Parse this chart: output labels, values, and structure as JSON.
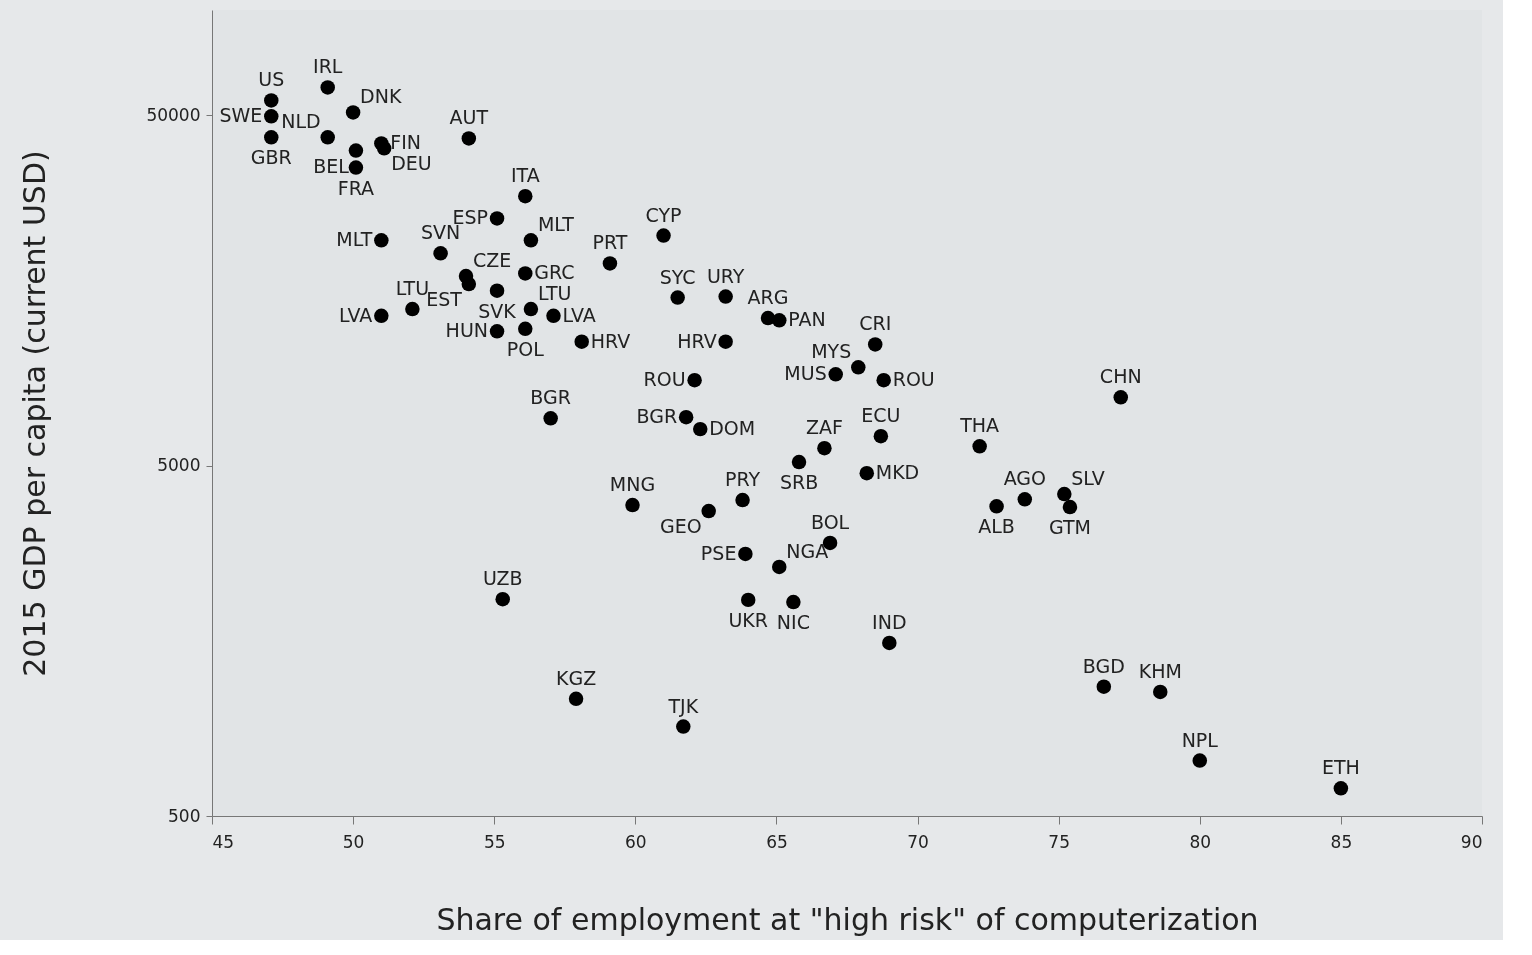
{
  "chart_data": {
    "type": "scatter",
    "xlabel": "Share of employment at \"high risk\" of computerization",
    "ylabel": "2015 GDP per capita (current USD)",
    "x": [
      47.1,
      47.1,
      47.1,
      49.1,
      50.0,
      49.1,
      50.1,
      50.1,
      51.0,
      51.1,
      54.1,
      56.1,
      55.1,
      56.3,
      51.0,
      53.1,
      54.0,
      54.1,
      55.1,
      56.1,
      56.3,
      57.1,
      55.1,
      56.1,
      58.1,
      52.1,
      51.0,
      59.1,
      61.0,
      61.5,
      63.2,
      64.7,
      65.1,
      63.2,
      68.5,
      67.9,
      67.1,
      68.8,
      62.1,
      61.8,
      62.3,
      66.7,
      65.8,
      68.7,
      68.2,
      72.2,
      57.0,
      59.9,
      62.6,
      63.8,
      63.9,
      65.1,
      66.9,
      55.3,
      64.0,
      65.6,
      69.0,
      57.9,
      61.7,
      77.2,
      73.8,
      72.8,
      75.2,
      75.4,
      76.6,
      78.6,
      80.0,
      85.0
    ],
    "values": [
      55200,
      49700,
      43300,
      60100,
      51000,
      43300,
      39700,
      35500,
      41600,
      40300,
      43000,
      29400,
      25400,
      22000,
      22000,
      20200,
      17400,
      16500,
      15800,
      17700,
      14000,
      13400,
      12100,
      12300,
      11300,
      14000,
      13400,
      18900,
      22700,
      15100,
      15200,
      13200,
      13000,
      11300,
      11100,
      9550,
      9120,
      8770,
      8770,
      6880,
      6360,
      5610,
      5120,
      6070,
      4760,
      5680,
      6830,
      3860,
      3710,
      3990,
      2800,
      2570,
      3010,
      2080,
      2070,
      2040,
      1560,
      1080,
      900,
      7840,
      4010,
      3830,
      4150,
      3810,
      1170,
      1130,
      720,
      600
    ],
    "color": "#000000",
    "marker": "circle",
    "xlim": [
      45,
      90
    ],
    "xticks": [
      45,
      50,
      55,
      60,
      65,
      70,
      75,
      80,
      85,
      90
    ],
    "ylim": [
      500,
      100000
    ],
    "yticks": [
      500,
      5000,
      50000
    ],
    "log": "y",
    "grid": false,
    "annotations": [
      {
        "text": "US",
        "x": 47.1,
        "y": 55200
      },
      {
        "text": "SWE",
        "x": 47.1,
        "y": 49700
      },
      {
        "text": "GBR",
        "x": 47.1,
        "y": 43300
      },
      {
        "text": "IRL",
        "x": 49.1,
        "y": 60100
      },
      {
        "text": "DNK",
        "x": 50.0,
        "y": 51000
      },
      {
        "text": "NLD",
        "x": 49.1,
        "y": 43300
      },
      {
        "text": "BEL",
        "x": 50.1,
        "y": 39700
      },
      {
        "text": "FRA",
        "x": 50.1,
        "y": 35500
      },
      {
        "text": "FIN",
        "x": 51.0,
        "y": 41600
      },
      {
        "text": "DEU",
        "x": 51.1,
        "y": 40300
      },
      {
        "text": "AUT",
        "x": 54.1,
        "y": 43000
      },
      {
        "text": "ITA",
        "x": 56.1,
        "y": 29400
      },
      {
        "text": "ESP",
        "x": 55.1,
        "y": 25400
      },
      {
        "text": "MLT",
        "x": 56.3,
        "y": 22000
      },
      {
        "text": "MLT",
        "x": 51.0,
        "y": 22000
      },
      {
        "text": "SVN",
        "x": 53.1,
        "y": 20200
      },
      {
        "text": "CZE",
        "x": 54.0,
        "y": 17400
      },
      {
        "text": "EST",
        "x": 54.1,
        "y": 16500
      },
      {
        "text": "SVK",
        "x": 55.1,
        "y": 15800
      },
      {
        "text": "GRC",
        "x": 56.1,
        "y": 17700
      },
      {
        "text": "LTU",
        "x": 56.3,
        "y": 14000
      },
      {
        "text": "LVA",
        "x": 57.1,
        "y": 13400
      },
      {
        "text": "HUN",
        "x": 55.1,
        "y": 12100
      },
      {
        "text": "POL",
        "x": 56.1,
        "y": 12300
      },
      {
        "text": "HRV",
        "x": 58.1,
        "y": 11300
      },
      {
        "text": "LTU",
        "x": 52.1,
        "y": 14000
      },
      {
        "text": "LVA",
        "x": 51.0,
        "y": 13400
      },
      {
        "text": "PRT",
        "x": 59.1,
        "y": 18900
      },
      {
        "text": "CYP",
        "x": 61.0,
        "y": 22700
      },
      {
        "text": "SYC",
        "x": 61.5,
        "y": 15100
      },
      {
        "text": "URY",
        "x": 63.2,
        "y": 15200
      },
      {
        "text": "ARG",
        "x": 64.7,
        "y": 13200
      },
      {
        "text": "PAN",
        "x": 65.1,
        "y": 13000
      },
      {
        "text": "HRV",
        "x": 63.2,
        "y": 11300
      },
      {
        "text": "CRI",
        "x": 68.5,
        "y": 11100
      },
      {
        "text": "MYS",
        "x": 67.9,
        "y": 9550
      },
      {
        "text": "MUS",
        "x": 67.1,
        "y": 9120
      },
      {
        "text": "ROU",
        "x": 68.8,
        "y": 8770
      },
      {
        "text": "ROU",
        "x": 62.1,
        "y": 8770
      },
      {
        "text": "BGR",
        "x": 61.8,
        "y": 6880
      },
      {
        "text": "DOM",
        "x": 62.3,
        "y": 6360
      },
      {
        "text": "ZAF",
        "x": 66.7,
        "y": 5610
      },
      {
        "text": "SRB",
        "x": 65.8,
        "y": 5120
      },
      {
        "text": "ECU",
        "x": 68.7,
        "y": 6070
      },
      {
        "text": "MKD",
        "x": 68.2,
        "y": 4760
      },
      {
        "text": "THA",
        "x": 72.2,
        "y": 5680
      },
      {
        "text": "BGR",
        "x": 57.0,
        "y": 6830
      },
      {
        "text": "MNG",
        "x": 59.9,
        "y": 3860
      },
      {
        "text": "GEO",
        "x": 62.6,
        "y": 3710
      },
      {
        "text": "PRY",
        "x": 63.8,
        "y": 3990
      },
      {
        "text": "PSE",
        "x": 63.9,
        "y": 2800
      },
      {
        "text": "NGA",
        "x": 65.1,
        "y": 2570
      },
      {
        "text": "BOL",
        "x": 66.9,
        "y": 3010
      },
      {
        "text": "UZB",
        "x": 55.3,
        "y": 2080
      },
      {
        "text": "UKR",
        "x": 64.0,
        "y": 2070
      },
      {
        "text": "NIC",
        "x": 65.6,
        "y": 2040
      },
      {
        "text": "IND",
        "x": 69.0,
        "y": 1560
      },
      {
        "text": "KGZ",
        "x": 57.9,
        "y": 1080
      },
      {
        "text": "TJK",
        "x": 61.7,
        "y": 900
      },
      {
        "text": "CHN",
        "x": 77.2,
        "y": 7840
      },
      {
        "text": "AGO",
        "x": 73.8,
        "y": 4010
      },
      {
        "text": "ALB",
        "x": 72.8,
        "y": 3830
      },
      {
        "text": "SLV",
        "x": 75.2,
        "y": 4150
      },
      {
        "text": "GTM",
        "x": 75.4,
        "y": 3810
      },
      {
        "text": "BGD",
        "x": 76.6,
        "y": 1170
      },
      {
        "text": "KHM",
        "x": 78.6,
        "y": 1130
      },
      {
        "text": "NPL",
        "x": 80.0,
        "y": 720
      },
      {
        "text": "ETH",
        "x": 85.0,
        "y": 600
      }
    ]
  }
}
